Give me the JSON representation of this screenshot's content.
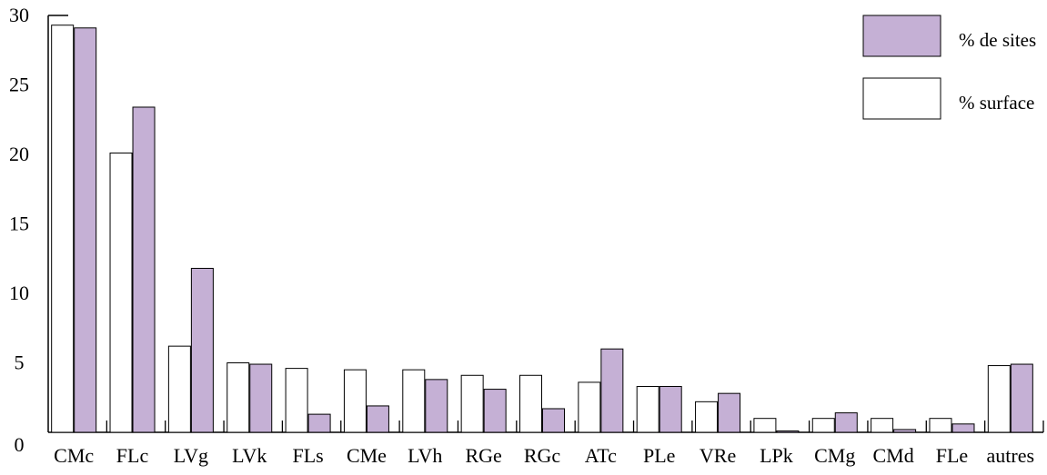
{
  "chart_data": {
    "type": "bar",
    "categories": [
      "CMc",
      "FLc",
      "LVg",
      "LVk",
      "FLs",
      "CMe",
      "LVh",
      "RGe",
      "RGc",
      "ATc",
      "PLe",
      "VRe",
      "LPk",
      "CMg",
      "CMd",
      "FLe",
      "autres"
    ],
    "series": [
      {
        "name": "% surface",
        "color": "#ffffff",
        "values": [
          29.3,
          20.1,
          6.2,
          5.0,
          4.6,
          4.5,
          4.5,
          4.1,
          4.1,
          3.6,
          3.3,
          2.2,
          1.0,
          1.0,
          1.0,
          1.0,
          4.8
        ]
      },
      {
        "name": "% de sites",
        "color": "#c5b0d5",
        "values": [
          29.1,
          23.4,
          11.8,
          4.9,
          1.3,
          1.9,
          3.8,
          3.1,
          1.7,
          6.0,
          3.3,
          2.8,
          0.1,
          1.4,
          0.2,
          0.6,
          4.9
        ]
      }
    ],
    "legend": [
      {
        "label": "% de sites",
        "color": "#c5b0d5"
      },
      {
        "label": "% surface",
        "color": "#ffffff"
      }
    ],
    "ylim": [
      0,
      30
    ],
    "yticks": [
      "0",
      "5",
      "10",
      "15",
      "20",
      "25",
      "30"
    ],
    "legend_position": "top-right",
    "grid": false
  }
}
